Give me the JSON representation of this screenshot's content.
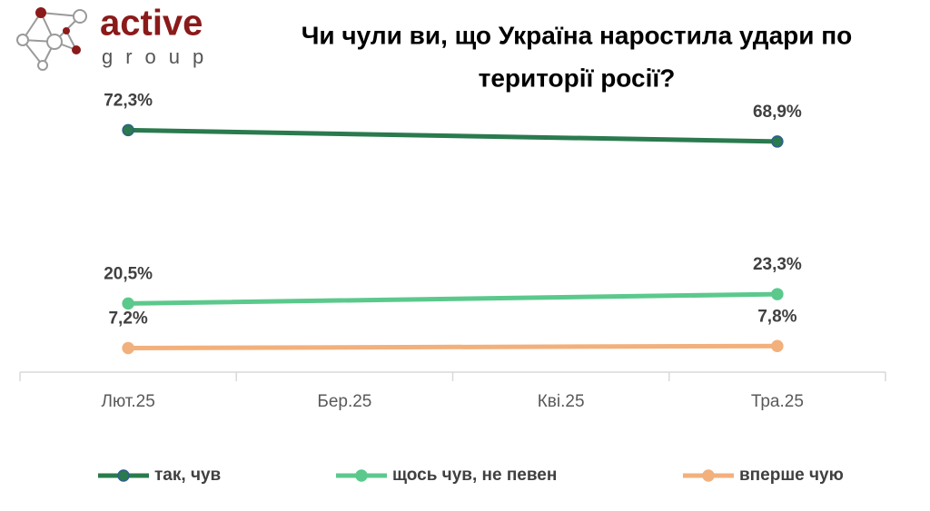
{
  "logo": {
    "name": "active",
    "sub": "group"
  },
  "chart_data": {
    "type": "line",
    "title": [
      "Чи чули ви, що Україна наростила удари по",
      "території росії?"
    ],
    "categories": [
      "Лют.25",
      "Бер.25",
      "Кві.25",
      "Тра.25"
    ],
    "span_gaps": true,
    "ylim": [
      0,
      80
    ],
    "series": [
      {
        "name": "так, чув",
        "color": "#2a7a4e",
        "values": [
          72.3,
          null,
          null,
          68.9
        ],
        "value_labels": [
          "72,3%",
          null,
          null,
          "68,9%"
        ]
      },
      {
        "name": "щось чув, не певен",
        "color": "#5bc98c",
        "values": [
          20.5,
          null,
          null,
          23.3
        ],
        "value_labels": [
          "20,5%",
          null,
          null,
          "23,3%"
        ]
      },
      {
        "name": "вперше чую",
        "color": "#f2b07c",
        "values": [
          7.2,
          null,
          null,
          7.8
        ],
        "value_labels": [
          "7,2%",
          null,
          null,
          "7,8%"
        ]
      }
    ],
    "legend": "bottom"
  }
}
